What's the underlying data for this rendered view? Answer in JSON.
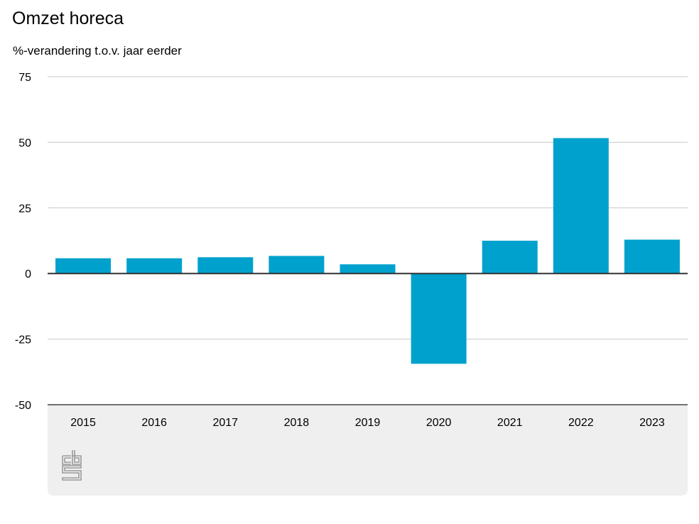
{
  "chart_data": {
    "type": "bar",
    "title": "Omzet horeca",
    "subtitle": "%-verandering t.o.v. jaar eerder",
    "xlabel": "",
    "ylabel": "%-verandering t.o.v. jaar eerder",
    "categories": [
      "2015",
      "2016",
      "2017",
      "2018",
      "2019",
      "2020",
      "2021",
      "2022",
      "2023"
    ],
    "values": [
      5.8,
      5.8,
      6.2,
      6.7,
      3.5,
      -34.4,
      12.5,
      51.6,
      12.9
    ],
    "ylim": [
      -50,
      75
    ],
    "yticks": [
      75,
      50,
      25,
      0,
      -25,
      -50
    ],
    "ytick_labels": [
      "75",
      "50",
      "25",
      "0",
      "-25",
      "-50"
    ],
    "grid": true,
    "legend": "none",
    "bar_color": "#00a1cd"
  },
  "branding": {
    "logo": "cbs-logo-icon"
  }
}
